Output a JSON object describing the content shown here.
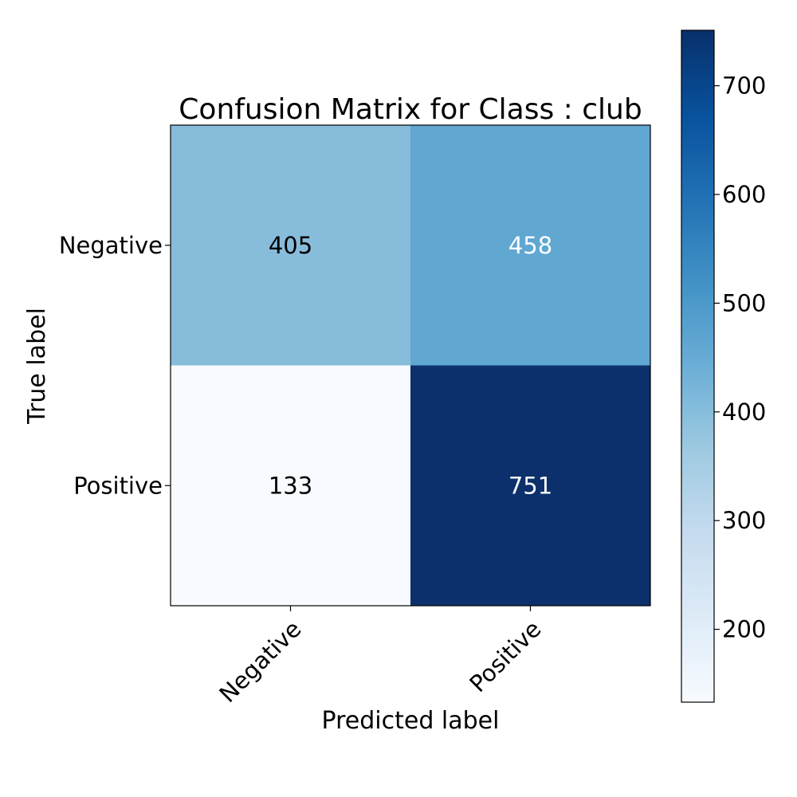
{
  "chart_data": {
    "type": "heatmap",
    "title": "Confusion Matrix for Class : club",
    "xlabel": "Predicted label",
    "ylabel": "True label",
    "x_categories": [
      "Negative",
      "Positive"
    ],
    "y_categories": [
      "Negative",
      "Positive"
    ],
    "values": [
      [
        405,
        458
      ],
      [
        133,
        751
      ]
    ],
    "colormap": "Blues",
    "color_range": [
      133,
      751
    ],
    "colorbar_ticks": [
      200,
      300,
      400,
      500,
      600,
      700
    ],
    "colors": {
      "cell_0_0": "#88bcdb",
      "cell_0_1": "#60a7d2",
      "cell_1_0": "#f7fbff",
      "cell_1_1": "#0b306b",
      "text_dark": "#000000",
      "text_light": "#ffffff"
    }
  }
}
